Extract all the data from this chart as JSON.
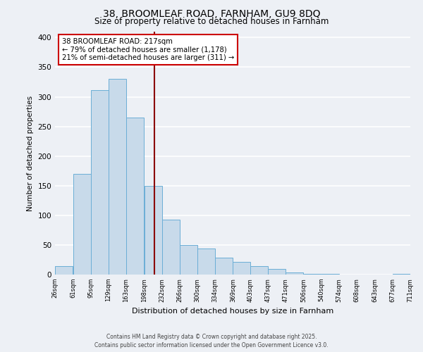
{
  "title": "38, BROOMLEAF ROAD, FARNHAM, GU9 8DQ",
  "subtitle": "Size of property relative to detached houses in Farnham",
  "xlabel": "Distribution of detached houses by size in Farnham",
  "ylabel": "Number of detached properties",
  "bar_left_edges": [
    26,
    61,
    95,
    129,
    163,
    198,
    232,
    266,
    300,
    334,
    369,
    403,
    437,
    471,
    506,
    540,
    574,
    608,
    643,
    677
  ],
  "bar_heights": [
    14,
    170,
    311,
    330,
    265,
    150,
    93,
    50,
    44,
    29,
    21,
    14,
    10,
    3,
    1,
    1,
    0,
    0,
    0,
    1
  ],
  "bin_width": 34,
  "tick_labels": [
    "26sqm",
    "61sqm",
    "95sqm",
    "129sqm",
    "163sqm",
    "198sqm",
    "232sqm",
    "266sqm",
    "300sqm",
    "334sqm",
    "369sqm",
    "403sqm",
    "437sqm",
    "471sqm",
    "506sqm",
    "540sqm",
    "574sqm",
    "608sqm",
    "643sqm",
    "677sqm",
    "711sqm"
  ],
  "property_value": 217,
  "property_label": "38 BROOMLEAF ROAD: 217sqm",
  "annotation_line1": "← 79% of detached houses are smaller (1,178)",
  "annotation_line2": "21% of semi-detached houses are larger (311) →",
  "vline_color": "#8b0000",
  "bar_fill_color": "#c8daea",
  "bar_edge_color": "#6baed6",
  "box_edge_color": "#cc0000",
  "ylim": [
    0,
    410
  ],
  "yticks": [
    0,
    50,
    100,
    150,
    200,
    250,
    300,
    350,
    400
  ],
  "background_color": "#edf0f5",
  "grid_color": "#ffffff",
  "footer_line1": "Contains HM Land Registry data © Crown copyright and database right 2025.",
  "footer_line2": "Contains public sector information licensed under the Open Government Licence v3.0."
}
